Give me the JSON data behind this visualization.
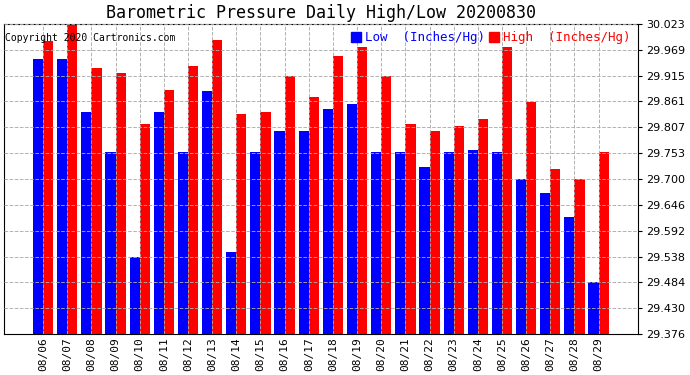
{
  "title": "Barometric Pressure Daily High/Low 20200830",
  "copyright": "Copyright 2020 Cartronics.com",
  "legend_low": "Low  (Inches/Hg)",
  "legend_high": "High  (Inches/Hg)",
  "dates": [
    "08/06",
    "08/07",
    "08/08",
    "08/09",
    "08/10",
    "08/11",
    "08/12",
    "08/13",
    "08/14",
    "08/15",
    "08/16",
    "08/17",
    "08/18",
    "08/19",
    "08/20",
    "08/21",
    "08/22",
    "08/23",
    "08/24",
    "08/25",
    "08/26",
    "08/27",
    "08/28",
    "08/29"
  ],
  "low": [
    29.95,
    29.95,
    29.84,
    29.755,
    29.537,
    29.84,
    29.755,
    29.882,
    29.548,
    29.755,
    29.8,
    29.8,
    29.845,
    29.855,
    29.755,
    29.755,
    29.725,
    29.755,
    29.76,
    29.755,
    29.7,
    29.67,
    29.62,
    29.484
  ],
  "high": [
    29.988,
    30.025,
    29.93,
    29.92,
    29.815,
    29.885,
    29.935,
    29.99,
    29.835,
    29.84,
    29.915,
    29.87,
    29.955,
    29.975,
    29.915,
    29.815,
    29.8,
    29.81,
    29.825,
    29.975,
    29.86,
    29.72,
    29.7,
    29.755
  ],
  "ylim_min": 29.376,
  "ylim_max": 30.023,
  "yticks": [
    29.376,
    29.43,
    29.484,
    29.538,
    29.592,
    29.646,
    29.7,
    29.753,
    29.807,
    29.861,
    29.915,
    29.969,
    30.023
  ],
  "bar_width": 0.42,
  "low_color": "#0000ff",
  "high_color": "#ff0000",
  "bg_color": "#ffffff",
  "grid_color": "#aaaaaa",
  "title_fontsize": 12,
  "tick_fontsize": 8,
  "legend_fontsize": 9
}
